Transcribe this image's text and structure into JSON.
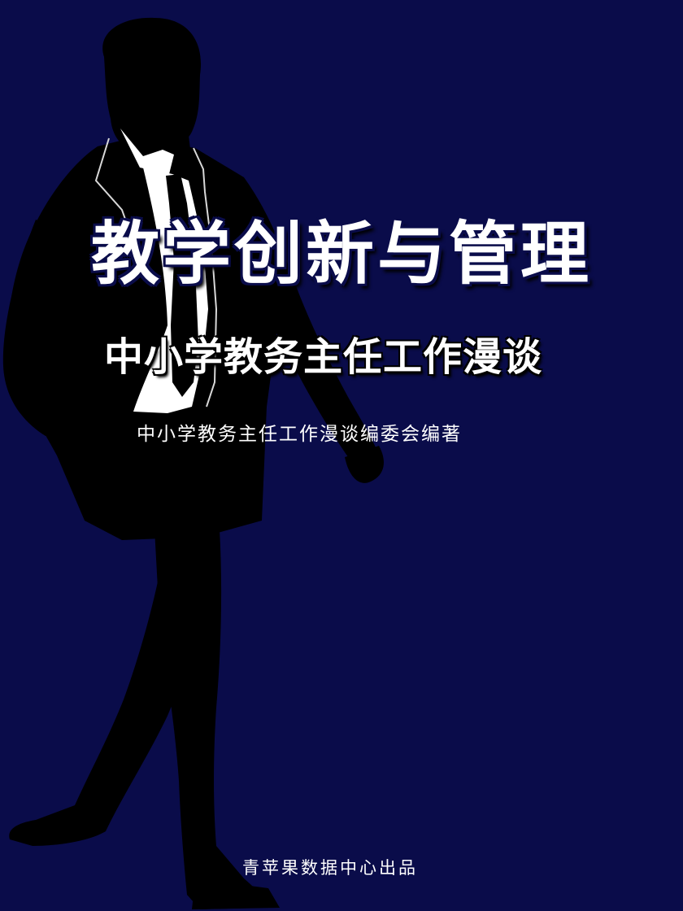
{
  "cover": {
    "title": "教学创新与管理",
    "subtitle": "中小学教务主任工作漫谈",
    "author": "中小学教务主任工作漫谈编委会编著",
    "publisher": "青苹果数据中心出品"
  },
  "colors": {
    "background": "#0a0c4a",
    "silhouette": "#000000",
    "text": "#ffffff",
    "shirt": "#ffffff"
  },
  "artwork": {
    "figure": "walking-businessman-silhouette"
  }
}
